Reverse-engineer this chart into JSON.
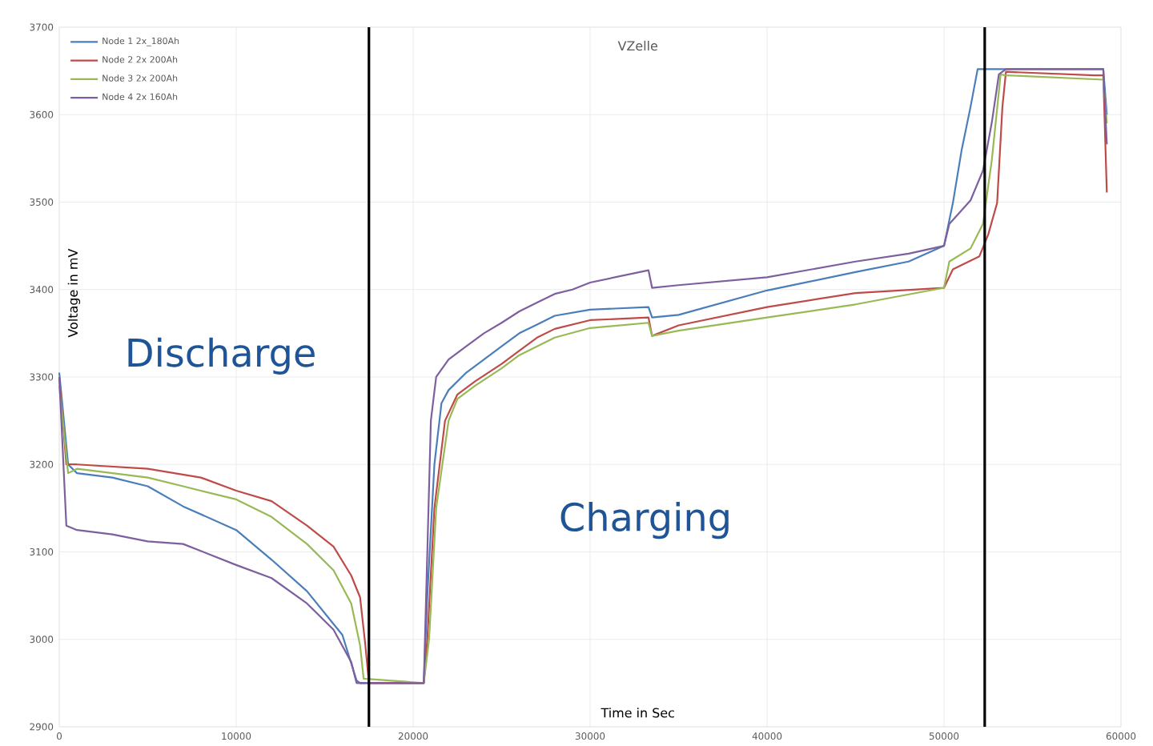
{
  "chart_data": {
    "type": "line",
    "title": "VZelle",
    "xlabel": "Time in Sec",
    "ylabel": "Voltage in mV",
    "xlim": [
      0,
      60000
    ],
    "ylim": [
      2900,
      3700
    ],
    "xticks": [
      0,
      10000,
      20000,
      30000,
      40000,
      50000,
      60000
    ],
    "yticks": [
      2900,
      3000,
      3100,
      3200,
      3300,
      3400,
      3500,
      3600,
      3700
    ],
    "grid": true,
    "legend": "top left",
    "marker": "none",
    "line_style": "solid",
    "ref_lines": [
      {
        "axis": "x",
        "value": 17500,
        "color": "#000000"
      },
      {
        "axis": "x",
        "value": 52300,
        "color": "#000000"
      }
    ],
    "annotations": [
      "Discharge",
      "Charging"
    ],
    "series": [
      {
        "name": "Node 1 2x_180Ah",
        "color": "#4a7ebb",
        "x": [
          0,
          500,
          1000,
          3000,
          5000,
          7000,
          10000,
          12000,
          14000,
          16000,
          16800,
          17000,
          20600,
          20800,
          21200,
          21600,
          22000,
          23000,
          24000,
          25000,
          26000,
          27000,
          28000,
          30000,
          33300,
          33500,
          35000,
          40000,
          45000,
          48000,
          50000,
          50500,
          51000,
          51500,
          51900,
          59000,
          59200
        ],
        "values": [
          3305,
          3200,
          3190,
          3185,
          3175,
          3152,
          3125,
          3091,
          3055,
          3005,
          2953,
          2950,
          2950,
          3050,
          3200,
          3270,
          3285,
          3305,
          3320,
          3335,
          3350,
          3360,
          3370,
          3377,
          3380,
          3368,
          3371,
          3399,
          3420,
          3432,
          3450,
          3499,
          3560,
          3609,
          3652,
          3652,
          3600
        ]
      },
      {
        "name": "Node 2 2x 200Ah",
        "color": "#be4b48",
        "x": [
          0,
          400,
          1000,
          5000,
          8000,
          10000,
          12000,
          14000,
          15500,
          16500,
          17000,
          17300,
          17500,
          20600,
          20800,
          21200,
          21800,
          22500,
          23500,
          25000,
          26000,
          27000,
          28000,
          30000,
          33300,
          33500,
          35000,
          40000,
          45000,
          50000,
          50500,
          52000,
          52500,
          53000,
          53300,
          53500,
          58500,
          59000,
          59200
        ],
        "values": [
          3300,
          3200,
          3200,
          3195,
          3185,
          3170,
          3158,
          3130,
          3106,
          3073,
          3048,
          2993,
          2950,
          2950,
          3000,
          3150,
          3250,
          3280,
          3295,
          3315,
          3330,
          3345,
          3355,
          3365,
          3368,
          3347,
          3359,
          3380,
          3396,
          3402,
          3423,
          3438,
          3463,
          3499,
          3609,
          3649,
          3645,
          3645,
          3511
        ]
      },
      {
        "name": "Node 3 2x 200Ah",
        "color": "#98b954",
        "x": [
          0,
          500,
          1000,
          3000,
          5000,
          7000,
          10000,
          12000,
          14000,
          15500,
          16500,
          17000,
          17200,
          20600,
          20900,
          21300,
          22000,
          22500,
          23500,
          25000,
          26000,
          27000,
          28000,
          30000,
          33300,
          33500,
          35000,
          40000,
          45000,
          50000,
          50300,
          51500,
          52200,
          52700,
          53200,
          53500,
          59000,
          59200
        ],
        "values": [
          3290,
          3190,
          3195,
          3190,
          3185,
          3175,
          3160,
          3140,
          3109,
          3079,
          3041,
          2993,
          2955,
          2950,
          3000,
          3150,
          3250,
          3275,
          3290,
          3310,
          3325,
          3335,
          3345,
          3356,
          3362,
          3347,
          3353,
          3368,
          3383,
          3402,
          3432,
          3447,
          3475,
          3548,
          3646,
          3645,
          3640,
          3590
        ]
      },
      {
        "name": "Node 4 2x 160Ah",
        "color": "#7d5fa0",
        "x": [
          0,
          400,
          1000,
          3000,
          5000,
          7000,
          10000,
          12000,
          14000,
          15500,
          16500,
          16800,
          20600,
          20800,
          21000,
          21300,
          22000,
          23000,
          24000,
          25000,
          26000,
          27000,
          28000,
          29000,
          30000,
          33300,
          33500,
          35000,
          40000,
          45000,
          48000,
          50000,
          50300,
          51500,
          52200,
          52700,
          53100,
          53500,
          59000,
          59200
        ],
        "values": [
          3300,
          3130,
          3125,
          3120,
          3112,
          3109,
          3085,
          3070,
          3041,
          3011,
          2974,
          2950,
          2950,
          3100,
          3250,
          3300,
          3320,
          3335,
          3350,
          3362,
          3375,
          3385,
          3395,
          3400,
          3408,
          3422,
          3402,
          3405,
          3414,
          3432,
          3441,
          3450,
          3475,
          3502,
          3536,
          3591,
          3646,
          3652,
          3652,
          3566
        ]
      }
    ]
  }
}
